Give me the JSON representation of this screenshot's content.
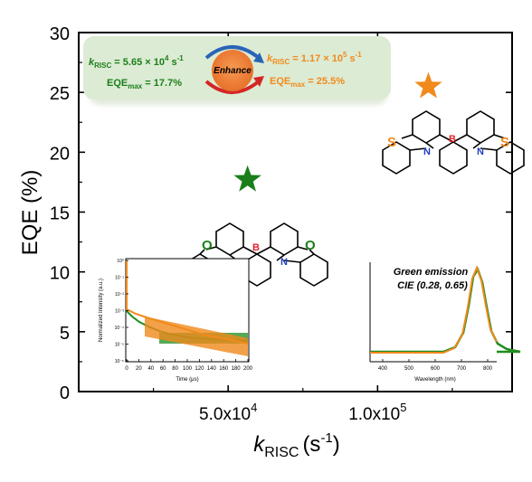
{
  "chart_data": {
    "type": "scatter",
    "xlabel_main": "k",
    "xlabel_sub": "RISC",
    "xlabel_unit": "(s",
    "xlabel_exp": "-1",
    "xlabel_close": ")",
    "ylabel": "EQE (%)",
    "xlim": [
      0,
      145000
    ],
    "ylim": [
      0,
      30
    ],
    "y_ticks": [
      0,
      5,
      10,
      15,
      20,
      25,
      30
    ],
    "x_ticks": [
      {
        "value": 50000,
        "label": "5.0x10",
        "exp": "4"
      },
      {
        "value": 100000,
        "label": "1.0x10",
        "exp": "5"
      }
    ],
    "series": [
      {
        "marker": "star",
        "color": "#1a7f1a",
        "points": [
          {
            "x": 56500,
            "y": 17.7
          }
        ]
      },
      {
        "marker": "star",
        "color": "#f08a1c",
        "points": [
          {
            "x": 117000,
            "y": 25.5
          }
        ]
      }
    ]
  },
  "banner": {
    "left_k_prefix": "k",
    "left_k_sub": "RISC",
    "left_k_value": " = 5.65 × 10",
    "left_k_exp": "4",
    "left_k_unit": " s",
    "left_k_unit_exp": "-1",
    "left_eqe_prefix": "EQE",
    "left_eqe_sub": "max",
    "left_eqe_value": " = 17.7%",
    "center_label": "Enhance",
    "right_k_prefix": "k",
    "right_k_sub": "RISC",
    "right_k_value": " = 1.17 × 10",
    "right_k_exp": "5",
    "right_k_unit": " s",
    "right_k_unit_exp": "-1",
    "right_eqe_prefix": "EQE",
    "right_eqe_sub": "max",
    "right_eqe_value": " = 25.5%"
  },
  "molecule_green": {
    "atom_o1": "O",
    "atom_o2": "O",
    "atom_b": "B",
    "atom_n1": "N",
    "atom_n2": "N"
  },
  "molecule_orange": {
    "atom_s1": "S",
    "atom_s2": "S",
    "atom_b": "B",
    "atom_n1": "N",
    "atom_n2": "N"
  },
  "inset_decay": {
    "ylabel": "Normalized Intensity (a.u.)",
    "xlabel": "Time (μs)",
    "x_ticks": [
      "0",
      "20",
      "40",
      "60",
      "80",
      "100",
      "120",
      "140",
      "160",
      "180",
      "200"
    ],
    "y_ticks": [
      "10⁰",
      "10⁻¹",
      "10⁻²",
      "10⁻³",
      "10⁻⁴",
      "10⁻⁵",
      "10⁻⁶"
    ]
  },
  "inset_spectrum": {
    "title1": "Green emission",
    "title2": "CIE (0.28, 0.65)",
    "xlabel": "Wavelength (nm)",
    "x_ticks": [
      "400",
      "500",
      "600",
      "700",
      "800"
    ]
  },
  "colors": {
    "green": "#1a7f1a",
    "orange": "#f08a1c",
    "boron": "#e0202a",
    "nitrogen": "#1f3fbf",
    "banner_bg": "#dcebd3"
  }
}
